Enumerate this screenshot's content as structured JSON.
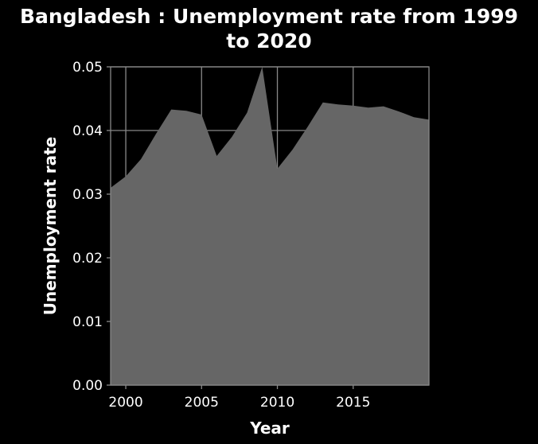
{
  "chart_data": {
    "type": "area",
    "title_line1": "Bangladesh : Unemployment rate from 1999",
    "title_line2": "to 2020",
    "xlabel": "Year",
    "ylabel": "Unemployment rate",
    "xlim": [
      1999,
      2020
    ],
    "ylim": [
      0,
      0.05
    ],
    "x_ticks": [
      2000,
      2005,
      2010,
      2015
    ],
    "x_tick_labels": [
      "2000",
      "2005",
      "2010",
      "2015"
    ],
    "y_ticks": [
      0,
      0.01,
      0.02,
      0.03,
      0.04,
      0.05
    ],
    "y_tick_labels": [
      "0.00",
      "0.01",
      "0.02",
      "0.03",
      "0.04",
      "0.05"
    ],
    "grid": true,
    "x": [
      1999,
      2000,
      2001,
      2002,
      2003,
      2004,
      2005,
      2006,
      2007,
      2008,
      2009,
      2010,
      2011,
      2012,
      2013,
      2014,
      2015,
      2016,
      2017,
      2018,
      2019,
      2020
    ],
    "series": [
      {
        "values": [
          0.031,
          0.0328,
          0.0355,
          0.0395,
          0.0433,
          0.0431,
          0.0425,
          0.036,
          0.039,
          0.0428,
          0.05,
          0.034,
          0.037,
          0.0406,
          0.0444,
          0.0441,
          0.0439,
          0.0436,
          0.0438,
          0.043,
          0.0421,
          0.0417
        ],
        "color": "#666666"
      }
    ],
    "colors": {
      "background": "#000000",
      "plot_background": "#000000",
      "grid": "#888888",
      "text": "#ffffff",
      "area": "#666666"
    }
  }
}
